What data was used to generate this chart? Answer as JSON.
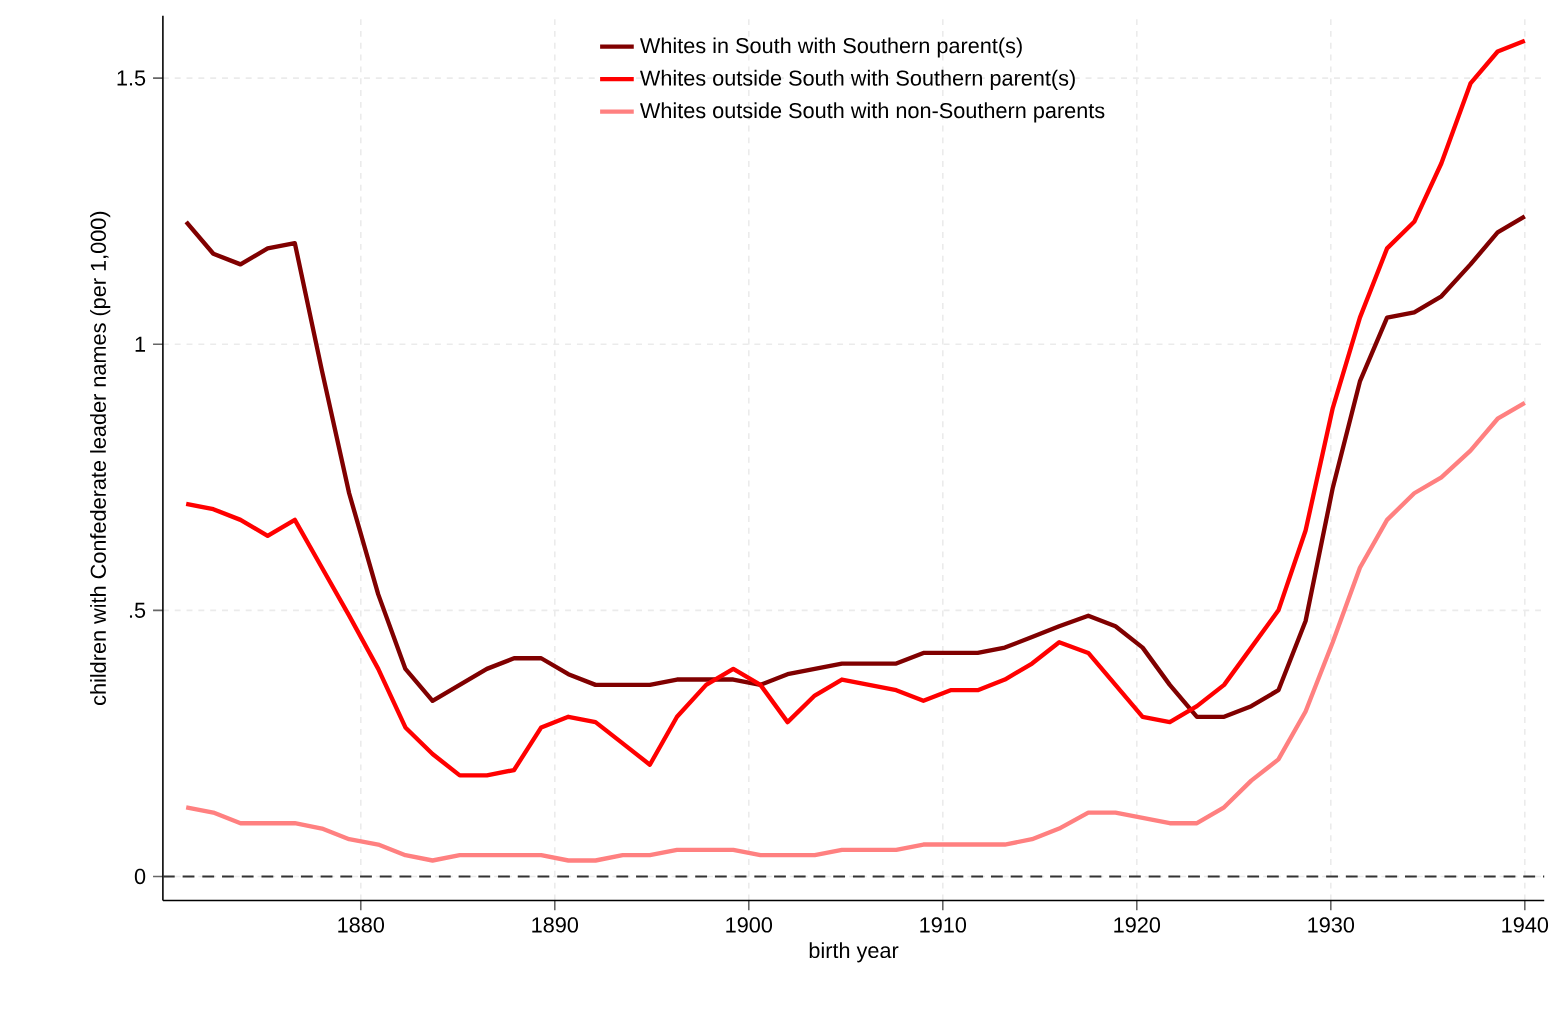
{
  "chart_data": {
    "type": "line",
    "xlabel": "birth year",
    "ylabel": "children with Confederate leader names (per 1,000)",
    "x": [
      1871.0,
      1872.4,
      1873.8,
      1875.2,
      1876.6,
      1878.0,
      1879.4,
      1880.9,
      1882.3,
      1883.7,
      1885.1,
      1886.5,
      1887.9,
      1889.3,
      1890.7,
      1892.1,
      1893.5,
      1894.9,
      1896.3,
      1897.8,
      1899.2,
      1900.6,
      1902.0,
      1903.4,
      1904.8,
      1906.2,
      1907.6,
      1909.0,
      1910.4,
      1911.8,
      1913.2,
      1914.6,
      1916.0,
      1917.5,
      1918.9,
      1920.3,
      1921.7,
      1923.1,
      1924.5,
      1925.9,
      1927.3,
      1928.7,
      1930.1,
      1931.5,
      1932.9,
      1934.3,
      1935.7,
      1937.2,
      1938.6,
      1940.0
    ],
    "series": [
      {
        "name": "Whites in South with Southern parent(s)",
        "color": "#800000",
        "values": [
          1.23,
          1.17,
          1.15,
          1.18,
          1.19,
          0.95,
          0.72,
          0.53,
          0.39,
          0.33,
          0.36,
          0.39,
          0.41,
          0.41,
          0.38,
          0.36,
          0.36,
          0.36,
          0.37,
          0.37,
          0.37,
          0.36,
          0.38,
          0.39,
          0.4,
          0.4,
          0.4,
          0.42,
          0.42,
          0.42,
          0.43,
          0.45,
          0.47,
          0.49,
          0.47,
          0.43,
          0.36,
          0.3,
          0.3,
          0.32,
          0.35,
          0.48,
          0.73,
          0.93,
          1.05,
          1.06,
          1.09,
          1.15,
          1.21,
          1.24
        ]
      },
      {
        "name": "Whites outside South with Southern parent(s)",
        "color": "#ff0000",
        "values": [
          0.7,
          0.69,
          0.67,
          0.64,
          0.67,
          0.58,
          0.49,
          0.39,
          0.28,
          0.23,
          0.19,
          0.19,
          0.2,
          0.28,
          0.3,
          0.29,
          0.25,
          0.21,
          0.3,
          0.36,
          0.39,
          0.36,
          0.29,
          0.34,
          0.37,
          0.36,
          0.35,
          0.33,
          0.35,
          0.35,
          0.37,
          0.4,
          0.44,
          0.42,
          0.36,
          0.3,
          0.29,
          0.32,
          0.36,
          0.43,
          0.5,
          0.65,
          0.88,
          1.05,
          1.18,
          1.23,
          1.34,
          1.49,
          1.55,
          1.57
        ]
      },
      {
        "name": "Whites outside South with non-Southern parents",
        "color": "#ff8080",
        "values": [
          0.13,
          0.12,
          0.1,
          0.1,
          0.1,
          0.09,
          0.07,
          0.06,
          0.04,
          0.03,
          0.04,
          0.04,
          0.04,
          0.04,
          0.03,
          0.03,
          0.04,
          0.04,
          0.05,
          0.05,
          0.05,
          0.04,
          0.04,
          0.04,
          0.05,
          0.05,
          0.05,
          0.06,
          0.06,
          0.06,
          0.06,
          0.07,
          0.09,
          0.12,
          0.12,
          0.11,
          0.1,
          0.1,
          0.13,
          0.18,
          0.22,
          0.31,
          0.44,
          0.58,
          0.67,
          0.72,
          0.75,
          0.8,
          0.86,
          0.89
        ]
      }
    ],
    "xlim": [
      1869.8,
      1941
    ],
    "ylim": [
      -0.045,
      1.617
    ],
    "xticks": [
      1880,
      1890,
      1900,
      1910,
      1920,
      1930,
      1940
    ],
    "yticks": [
      0,
      {
        "value": 0.5,
        "label": ".5"
      },
      1,
      1.5
    ],
    "ref_lines": [
      {
        "axis": "y",
        "value": 0,
        "color": "#333333",
        "line_style": "dashed"
      }
    ],
    "grid": true,
    "legend": "top",
    "line_style": "solid",
    "marker": "none"
  }
}
